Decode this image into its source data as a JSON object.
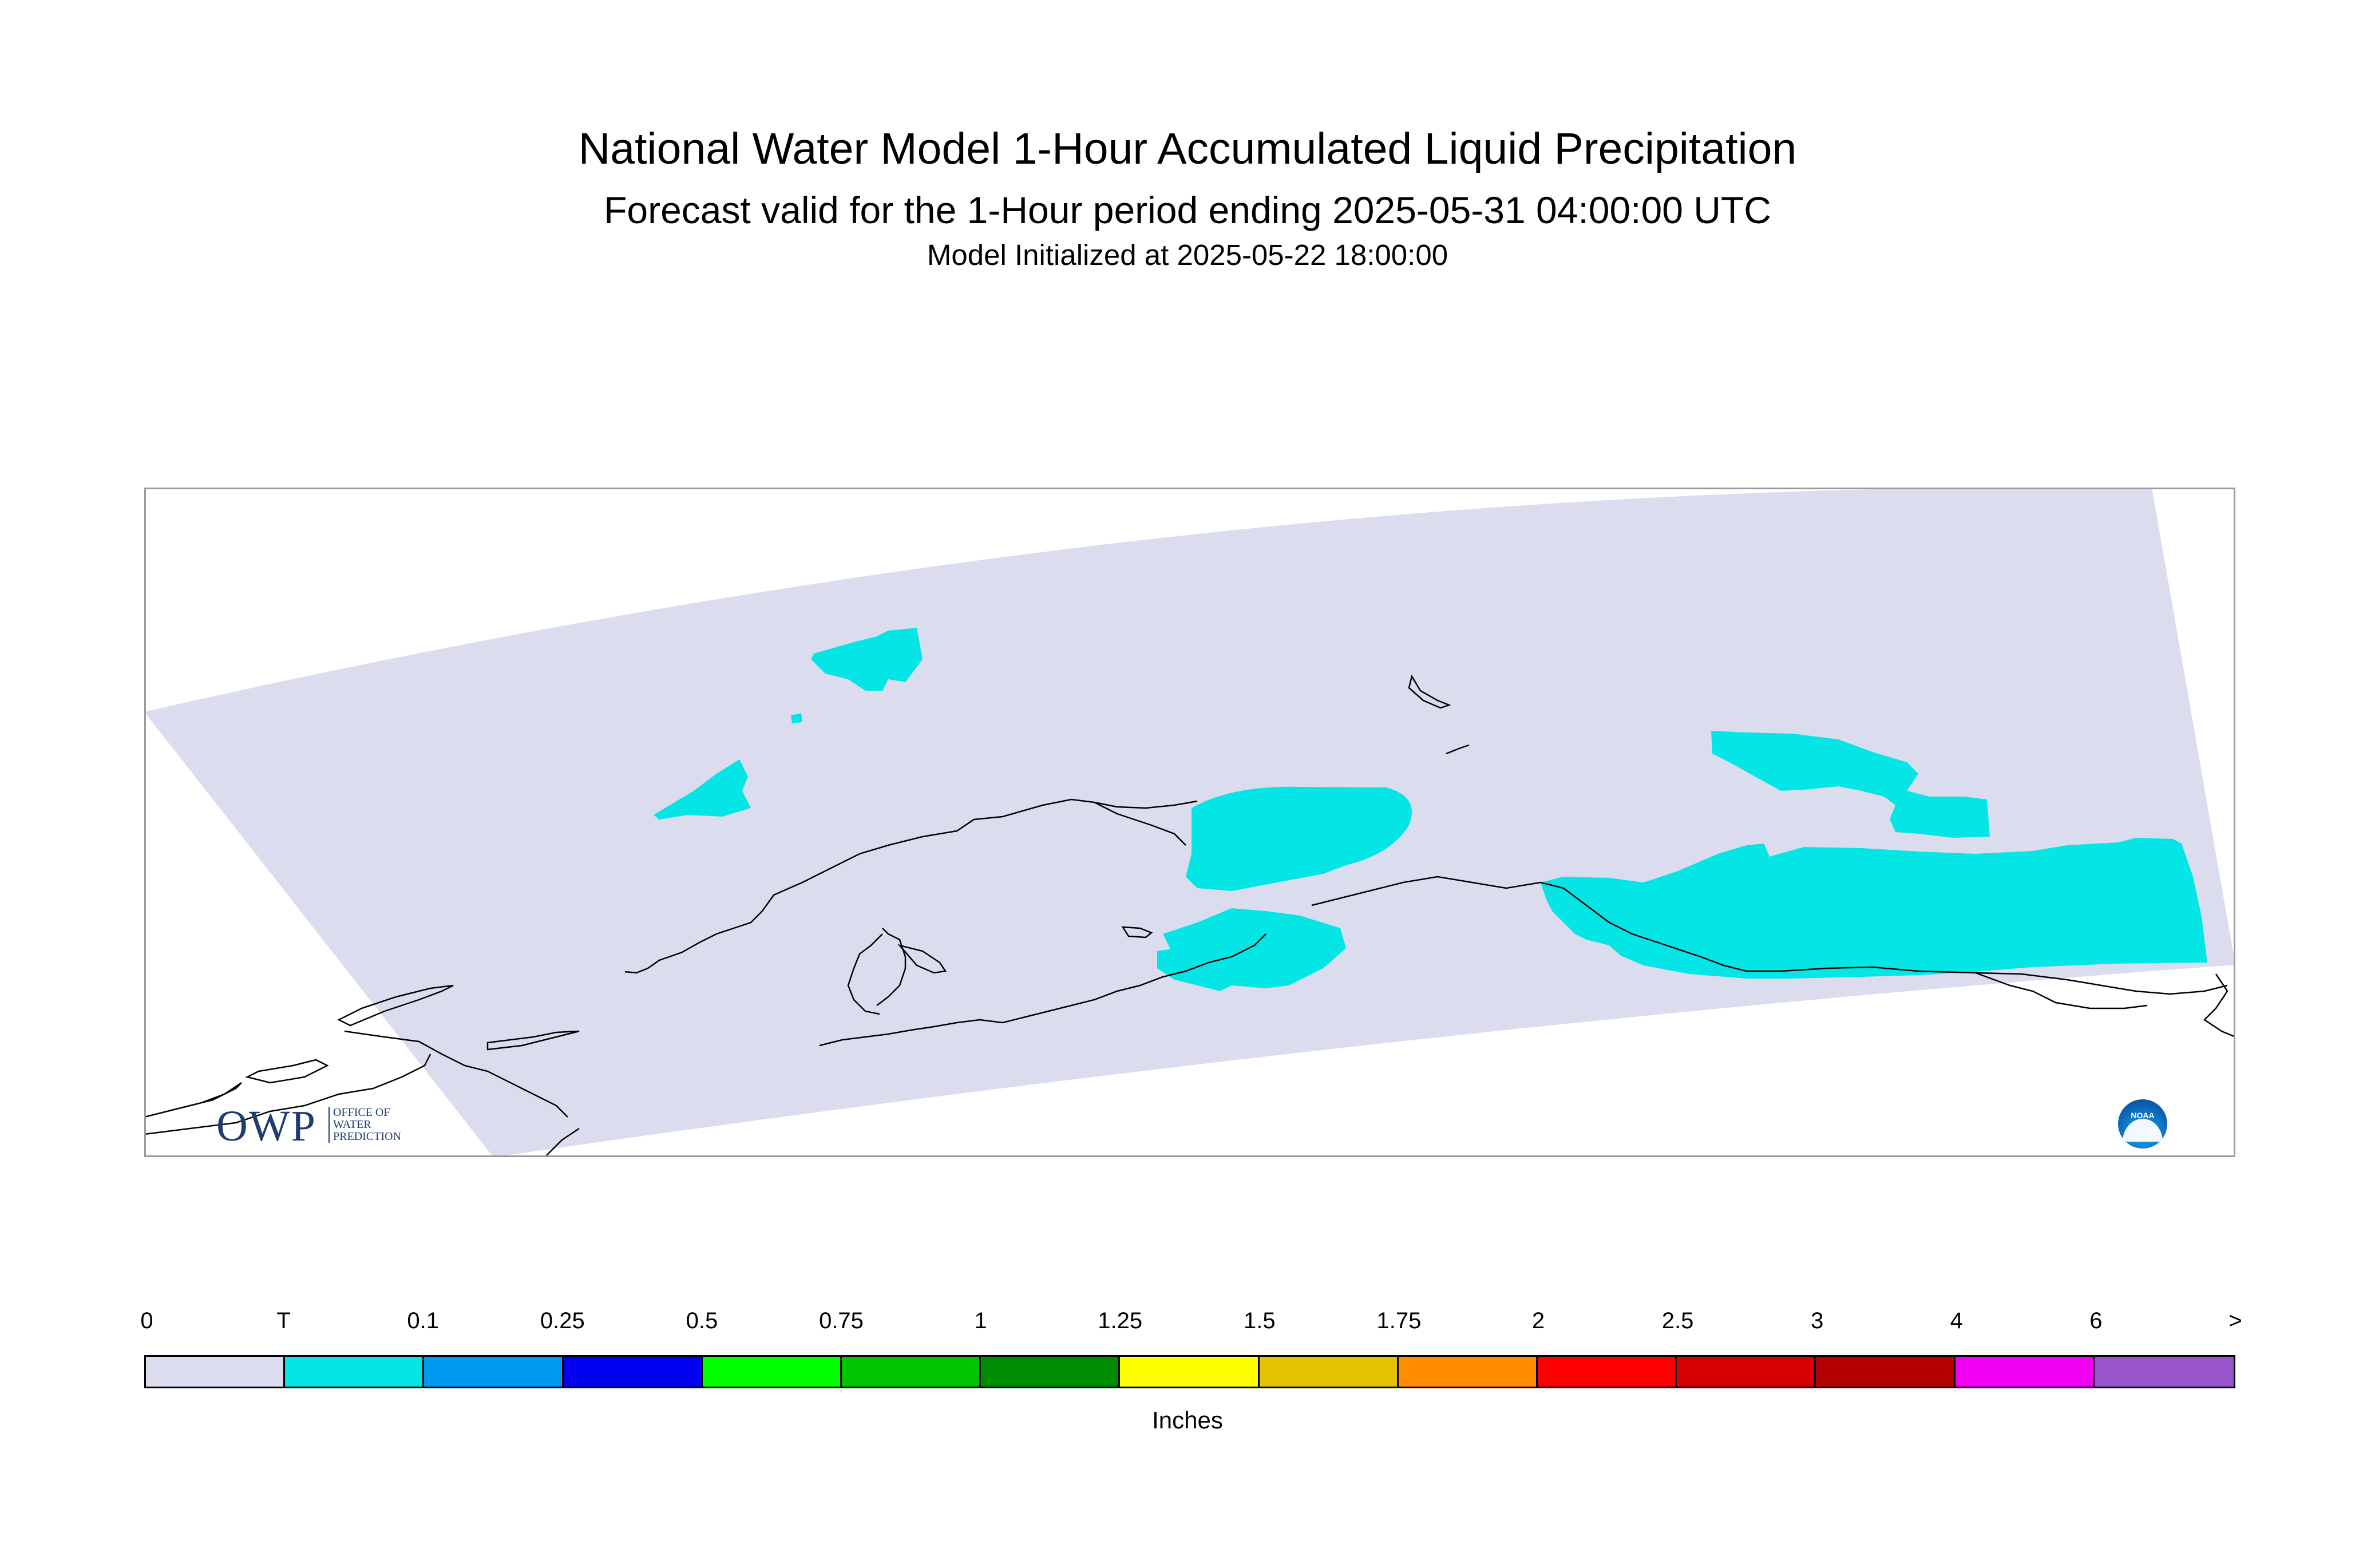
{
  "title": {
    "main": "National Water Model 1-Hour Accumulated Liquid Precipitation",
    "sub": "Forecast valid for the 1-Hour period ending 2025-05-31 04:00:00 UTC",
    "init": "Model Initialized at 2025-05-22 18:00:00"
  },
  "map": {
    "domain_fill_color": "#dcdcef",
    "precip_color": "#04e6e6",
    "coastline_color": "#000000",
    "frame_color": "#9a9a9a"
  },
  "logos": {
    "owp_big": "OWP",
    "owp_small": [
      "OFFICE OF",
      "WATER",
      "PREDICTION"
    ],
    "noaa": "NOAA"
  },
  "legend": {
    "labels": [
      "0",
      "T",
      "0.1",
      "0.25",
      "0.5",
      "0.75",
      "1",
      "1.25",
      "1.5",
      "1.75",
      "2",
      "2.5",
      "3",
      "4",
      "6",
      ">"
    ],
    "colors": [
      "#dcdcef",
      "#04e6e6",
      "#0099f2",
      "#0000f2",
      "#00ff00",
      "#00c400",
      "#008c00",
      "#ffff00",
      "#e6c300",
      "#ff8c00",
      "#ff0000",
      "#d60000",
      "#b30000",
      "#f200f2",
      "#9955cc"
    ],
    "units": "Inches"
  }
}
